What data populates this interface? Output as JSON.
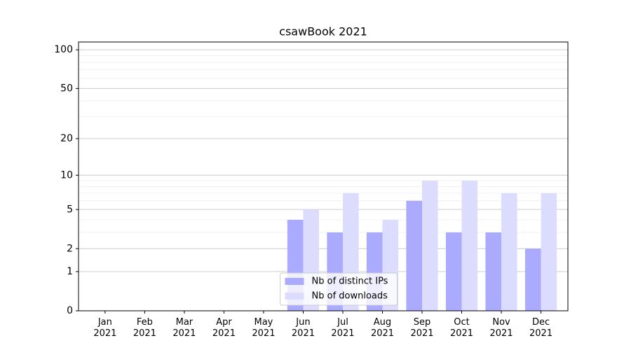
{
  "chart_data": {
    "type": "bar",
    "title": "csawBook 2021",
    "categories": [
      "Jan\n2021",
      "Feb\n2021",
      "Mar\n2021",
      "Apr\n2021",
      "May\n2021",
      "Jun\n2021",
      "Jul\n2021",
      "Aug\n2021",
      "Sep\n2021",
      "Oct\n2021",
      "Nov\n2021",
      "Dec\n2021"
    ],
    "series": [
      {
        "name": "Nb of distinct IPs",
        "color": "#aaaaff",
        "values": [
          0,
          0,
          0,
          0,
          0,
          4,
          3,
          3,
          6,
          3,
          3,
          2
        ]
      },
      {
        "name": "Nb of downloads",
        "color": "#dcdcff",
        "values": [
          0,
          0,
          0,
          0,
          0,
          5,
          7,
          4,
          9,
          9,
          7,
          7
        ]
      }
    ],
    "yscale": "log1p",
    "ylim": [
      0,
      115
    ],
    "yticks": [
      0,
      1,
      2,
      5,
      10,
      20,
      50,
      100
    ],
    "grid": true,
    "legend": "lower center"
  }
}
